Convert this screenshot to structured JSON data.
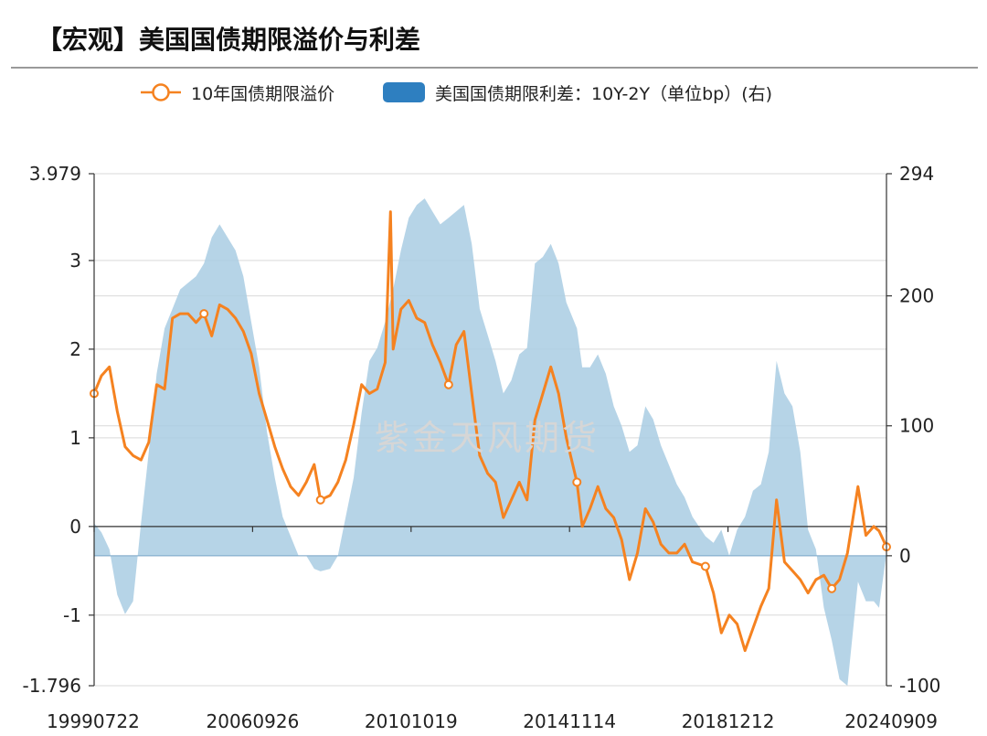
{
  "header": {
    "title": "【宏观】美国国债期限溢价与利差"
  },
  "watermark": "紫金天风期货",
  "chart_data": {
    "type": "line",
    "x_tick_labels": [
      "19990722",
      "20060926",
      "20101019",
      "20141114",
      "20181212",
      "20240909"
    ],
    "left_axis": {
      "ylim": [
        -1.796,
        3.979
      ],
      "tick_labels": [
        "3.979",
        "3",
        "2",
        "1",
        "0",
        "-1",
        "-1.796"
      ]
    },
    "right_axis": {
      "ylim": [
        -100,
        294
      ],
      "tick_labels": [
        "294",
        "200",
        "100",
        "0",
        "-100"
      ]
    },
    "grid": true,
    "legend_position": "top-center",
    "series": [
      {
        "name": "10年国债期限溢价",
        "axis": "left",
        "style": "line-with-circle-markers",
        "color": "#f58220",
        "points": [
          [
            "1999-07-22",
            1.5
          ],
          [
            "1999-10",
            1.7
          ],
          [
            "2000-01",
            1.8
          ],
          [
            "2000-04",
            1.3
          ],
          [
            "2000-07",
            0.9
          ],
          [
            "2000-10",
            0.8
          ],
          [
            "2001-01",
            0.75
          ],
          [
            "2001-04",
            0.95
          ],
          [
            "2001-07",
            1.6
          ],
          [
            "2001-10",
            1.55
          ],
          [
            "2002-01",
            2.35
          ],
          [
            "2002-04",
            2.4
          ],
          [
            "2002-07",
            2.4
          ],
          [
            "2002-10",
            2.3
          ],
          [
            "2003-01",
            2.4
          ],
          [
            "2003-04",
            2.15
          ],
          [
            "2003-07",
            2.5
          ],
          [
            "2003-10",
            2.45
          ],
          [
            "2004-01",
            2.35
          ],
          [
            "2004-04",
            2.2
          ],
          [
            "2004-07",
            1.95
          ],
          [
            "2004-10",
            1.5
          ],
          [
            "2005-01",
            1.2
          ],
          [
            "2005-04",
            0.9
          ],
          [
            "2005-07",
            0.65
          ],
          [
            "2005-10",
            0.45
          ],
          [
            "2006-01",
            0.35
          ],
          [
            "2006-04",
            0.5
          ],
          [
            "2006-07",
            0.7
          ],
          [
            "2006-09-26",
            0.3
          ],
          [
            "2007-01",
            0.35
          ],
          [
            "2007-04",
            0.5
          ],
          [
            "2007-07",
            0.75
          ],
          [
            "2007-10",
            1.15
          ],
          [
            "2008-01",
            1.6
          ],
          [
            "2008-04",
            1.5
          ],
          [
            "2008-07",
            1.55
          ],
          [
            "2008-10",
            1.85
          ],
          [
            "2008-12",
            3.55
          ],
          [
            "2009-01",
            2.0
          ],
          [
            "2009-04",
            2.45
          ],
          [
            "2009-07",
            2.55
          ],
          [
            "2009-10",
            2.35
          ],
          [
            "2010-01",
            2.3
          ],
          [
            "2010-04",
            2.05
          ],
          [
            "2010-07",
            1.85
          ],
          [
            "2010-10-19",
            1.6
          ],
          [
            "2011-01",
            2.05
          ],
          [
            "2011-04",
            2.2
          ],
          [
            "2011-07",
            1.5
          ],
          [
            "2011-10",
            0.8
          ],
          [
            "2012-01",
            0.6
          ],
          [
            "2012-04",
            0.5
          ],
          [
            "2012-07",
            0.1
          ],
          [
            "2012-10",
            0.3
          ],
          [
            "2013-01",
            0.5
          ],
          [
            "2013-04",
            0.3
          ],
          [
            "2013-07",
            1.2
          ],
          [
            "2013-10",
            1.5
          ],
          [
            "2014-01",
            1.8
          ],
          [
            "2014-04",
            1.5
          ],
          [
            "2014-07",
            1.0
          ],
          [
            "2014-11-14",
            0.5
          ],
          [
            "2015-01",
            0.0
          ],
          [
            "2015-04",
            0.2
          ],
          [
            "2015-07",
            0.45
          ],
          [
            "2015-10",
            0.2
          ],
          [
            "2016-01",
            0.1
          ],
          [
            "2016-04",
            -0.15
          ],
          [
            "2016-07",
            -0.6
          ],
          [
            "2016-10",
            -0.3
          ],
          [
            "2017-01",
            0.2
          ],
          [
            "2017-04",
            0.05
          ],
          [
            "2017-07",
            -0.2
          ],
          [
            "2017-10",
            -0.3
          ],
          [
            "2018-01",
            -0.3
          ],
          [
            "2018-04",
            -0.2
          ],
          [
            "2018-07",
            -0.4
          ],
          [
            "2018-12-12",
            -0.45
          ],
          [
            "2019-03",
            -0.75
          ],
          [
            "2019-06",
            -1.2
          ],
          [
            "2019-09",
            -1.0
          ],
          [
            "2019-12",
            -1.1
          ],
          [
            "2020-03",
            -1.4
          ],
          [
            "2020-06",
            -1.15
          ],
          [
            "2020-09",
            -0.9
          ],
          [
            "2020-12",
            -0.7
          ],
          [
            "2021-03",
            0.3
          ],
          [
            "2021-06",
            -0.4
          ],
          [
            "2021-09",
            -0.5
          ],
          [
            "2021-12",
            -0.6
          ],
          [
            "2022-03",
            -0.75
          ],
          [
            "2022-06",
            -0.6
          ],
          [
            "2022-09",
            -0.55
          ],
          [
            "2022-12",
            -0.7
          ],
          [
            "2023-03",
            -0.6
          ],
          [
            "2023-06",
            -0.3
          ],
          [
            "2023-10",
            0.45
          ],
          [
            "2024-01",
            -0.1
          ],
          [
            "2024-04",
            0.0
          ],
          [
            "2024-06",
            -0.05
          ],
          [
            "2024-09-09",
            -0.23
          ]
        ],
        "marker_dates": [
          "1999-07-22",
          "2003-01",
          "2006-09-26",
          "2010-10-19",
          "2014-11-14",
          "2018-12-12",
          "2022-12",
          "2024-09-09"
        ]
      },
      {
        "name": "美国国债期限利差：10Y-2Y（单位bp）(右)",
        "axis": "right",
        "style": "area",
        "color": "#a9cce3",
        "legend_color": "#2e7fc0",
        "points": [
          [
            "1999-07-22",
            25
          ],
          [
            "1999-10",
            18
          ],
          [
            "2000-01",
            5
          ],
          [
            "2000-04",
            -30
          ],
          [
            "2000-07",
            -45
          ],
          [
            "2000-10",
            -35
          ],
          [
            "2001-01",
            25
          ],
          [
            "2001-04",
            80
          ],
          [
            "2001-07",
            140
          ],
          [
            "2001-10",
            175
          ],
          [
            "2002-01",
            190
          ],
          [
            "2002-04",
            205
          ],
          [
            "2002-07",
            210
          ],
          [
            "2002-10",
            215
          ],
          [
            "2003-01",
            225
          ],
          [
            "2003-04",
            245
          ],
          [
            "2003-07",
            255
          ],
          [
            "2003-10",
            245
          ],
          [
            "2004-01",
            235
          ],
          [
            "2004-04",
            215
          ],
          [
            "2004-07",
            180
          ],
          [
            "2004-10",
            145
          ],
          [
            "2005-01",
            95
          ],
          [
            "2005-04",
            60
          ],
          [
            "2005-07",
            30
          ],
          [
            "2005-10",
            15
          ],
          [
            "2006-01",
            0
          ],
          [
            "2006-04",
            0
          ],
          [
            "2006-07",
            -10
          ],
          [
            "2006-09-26",
            -12
          ],
          [
            "2007-01",
            -10
          ],
          [
            "2007-04",
            0
          ],
          [
            "2007-07",
            30
          ],
          [
            "2007-10",
            60
          ],
          [
            "2008-01",
            110
          ],
          [
            "2008-04",
            150
          ],
          [
            "2008-07",
            160
          ],
          [
            "2008-10",
            180
          ],
          [
            "2009-01",
            205
          ],
          [
            "2009-04",
            235
          ],
          [
            "2009-07",
            260
          ],
          [
            "2009-10",
            270
          ],
          [
            "2010-01",
            275
          ],
          [
            "2010-04",
            265
          ],
          [
            "2010-07",
            255
          ],
          [
            "2010-10-19",
            260
          ],
          [
            "2011-01",
            265
          ],
          [
            "2011-04",
            270
          ],
          [
            "2011-07",
            240
          ],
          [
            "2011-10",
            190
          ],
          [
            "2012-01",
            170
          ],
          [
            "2012-04",
            150
          ],
          [
            "2012-07",
            125
          ],
          [
            "2012-10",
            135
          ],
          [
            "2013-01",
            155
          ],
          [
            "2013-04",
            160
          ],
          [
            "2013-07",
            225
          ],
          [
            "2013-10",
            230
          ],
          [
            "2014-01",
            240
          ],
          [
            "2014-04",
            225
          ],
          [
            "2014-07",
            195
          ],
          [
            "2014-11-14",
            175
          ],
          [
            "2015-01",
            145
          ],
          [
            "2015-04",
            145
          ],
          [
            "2015-07",
            155
          ],
          [
            "2015-10",
            140
          ],
          [
            "2016-01",
            115
          ],
          [
            "2016-04",
            100
          ],
          [
            "2016-07",
            80
          ],
          [
            "2016-10",
            85
          ],
          [
            "2017-01",
            115
          ],
          [
            "2017-04",
            105
          ],
          [
            "2017-07",
            85
          ],
          [
            "2017-10",
            70
          ],
          [
            "2018-01",
            55
          ],
          [
            "2018-04",
            45
          ],
          [
            "2018-07",
            30
          ],
          [
            "2018-12-12",
            15
          ],
          [
            "2019-03",
            10
          ],
          [
            "2019-06",
            20
          ],
          [
            "2019-09",
            0
          ],
          [
            "2019-12",
            20
          ],
          [
            "2020-03",
            30
          ],
          [
            "2020-06",
            50
          ],
          [
            "2020-09",
            55
          ],
          [
            "2020-12",
            80
          ],
          [
            "2021-03",
            150
          ],
          [
            "2021-06",
            125
          ],
          [
            "2021-09",
            115
          ],
          [
            "2021-12",
            80
          ],
          [
            "2022-03",
            20
          ],
          [
            "2022-06",
            5
          ],
          [
            "2022-09",
            -40
          ],
          [
            "2022-12",
            -65
          ],
          [
            "2023-03",
            -95
          ],
          [
            "2023-06",
            -100
          ],
          [
            "2023-10",
            -20
          ],
          [
            "2024-01",
            -35
          ],
          [
            "2024-04",
            -35
          ],
          [
            "2024-06",
            -40
          ],
          [
            "2024-09-09",
            2
          ]
        ]
      }
    ]
  }
}
